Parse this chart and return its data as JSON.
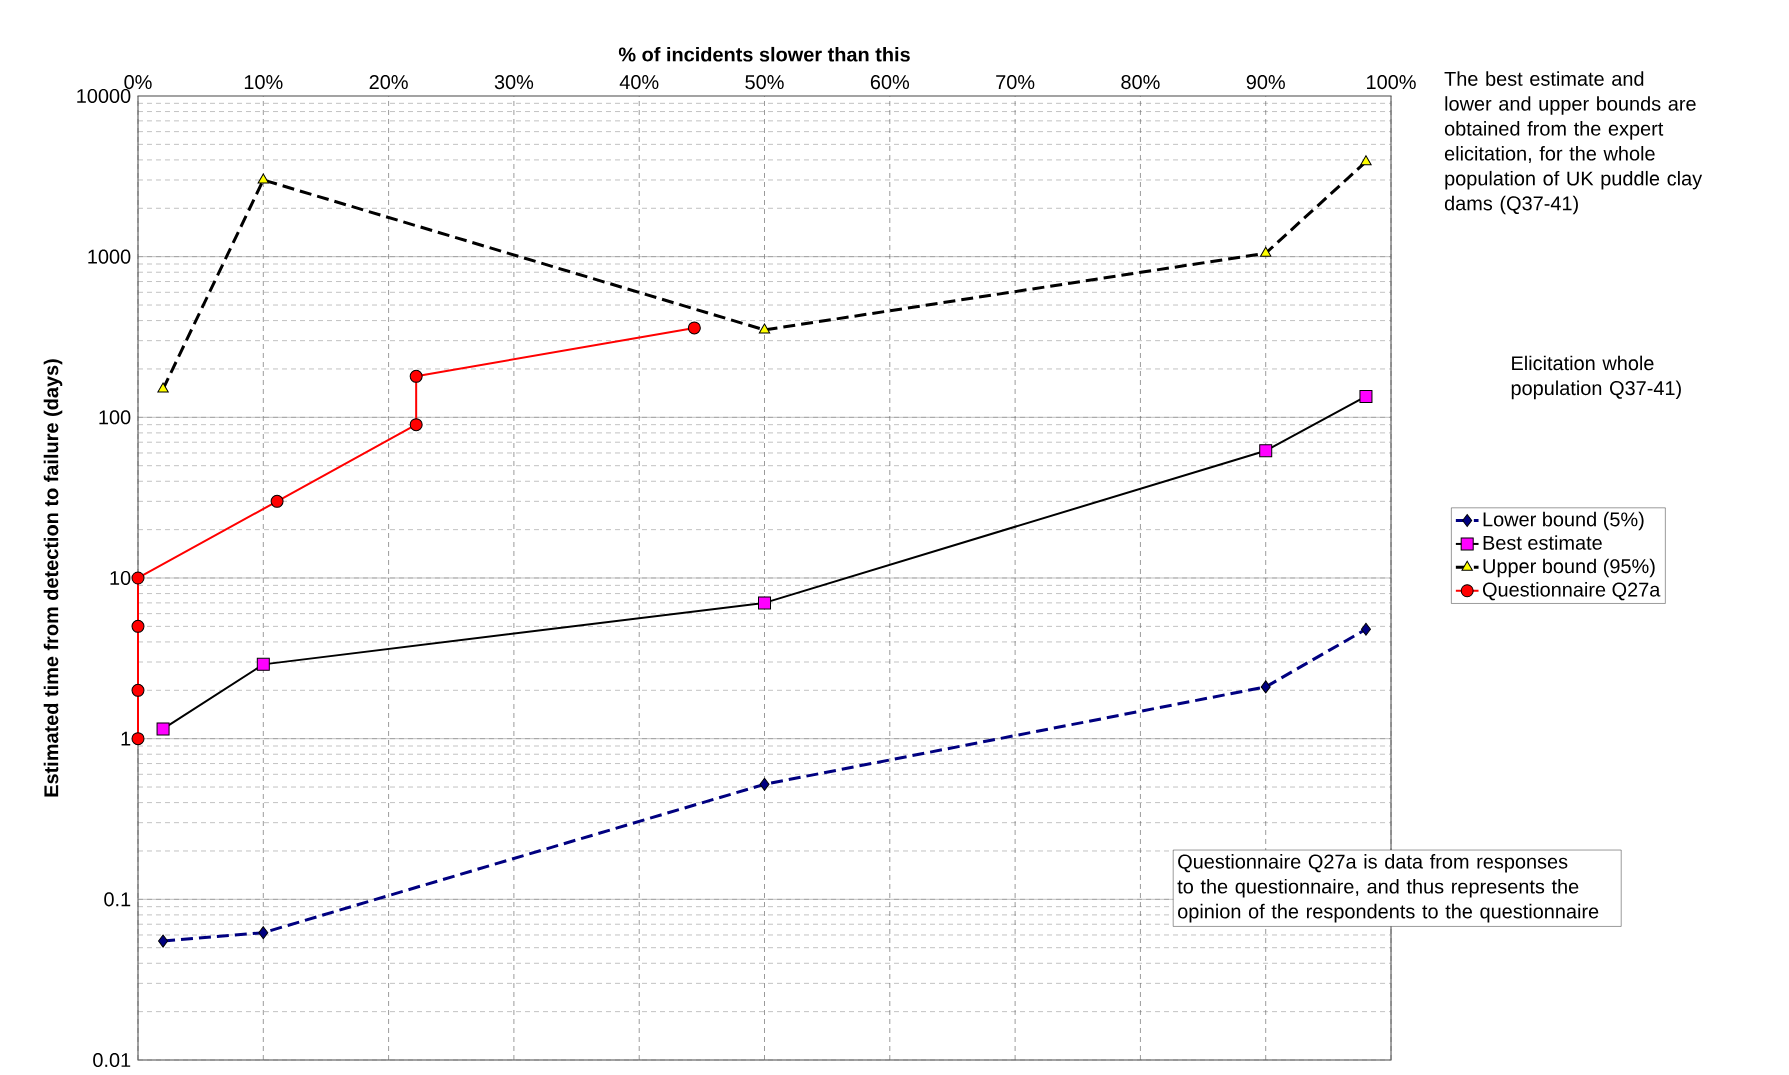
{
  "chart_data": {
    "type": "line",
    "xlabel": "% of incidents slower than this",
    "ylabel": "Estimated time from detection to failure (days)",
    "xlim": [
      0,
      100
    ],
    "xticks": [
      {
        "value": 0,
        "label": "0%"
      },
      {
        "value": 10,
        "label": "10%"
      },
      {
        "value": 20,
        "label": "20%"
      },
      {
        "value": 30,
        "label": "30%"
      },
      {
        "value": 40,
        "label": "40%"
      },
      {
        "value": 50,
        "label": "50%"
      },
      {
        "value": 60,
        "label": "60%"
      },
      {
        "value": 70,
        "label": "70%"
      },
      {
        "value": 80,
        "label": "80%"
      },
      {
        "value": 90,
        "label": "90%"
      },
      {
        "value": 100,
        "label": "100%"
      }
    ],
    "ylim": [
      0.01,
      10000
    ],
    "yticks": [
      0.01,
      0.1,
      1,
      10,
      100,
      1000,
      10000
    ],
    "log": "y",
    "grid": true,
    "legend": "right",
    "series": [
      {
        "name": "Lower bound (5%)",
        "color": "#000080",
        "colors": [
          "#000080",
          "#000080",
          "#000080",
          "#000080",
          "#000080"
        ],
        "marker": "diamond",
        "line_style": "dashed",
        "x": [
          2,
          10,
          50,
          90,
          98
        ],
        "values": [
          0.055,
          0.062,
          0.52,
          2.1,
          4.8
        ]
      },
      {
        "name": "Best estimate",
        "color": "#000000",
        "colors": [
          "#ff00ff",
          "#ff00ff",
          "#ff00ff",
          "#ff00ff",
          "#ff00ff"
        ],
        "marker": "square",
        "line_style": "solid",
        "x": [
          2,
          10,
          50,
          90,
          98
        ],
        "values": [
          1.15,
          2.9,
          7,
          62,
          135
        ]
      },
      {
        "name": "Upper bound (95%)",
        "color": "#000000",
        "colors": [
          "#ffff00",
          "#ffff00",
          "#ffff00",
          "#ffff00",
          "#ffff00"
        ],
        "marker": "triangle",
        "line_style": "dashed",
        "x": [
          2,
          10,
          50,
          90,
          98
        ],
        "values": [
          150,
          3000,
          350,
          1050,
          3900
        ]
      },
      {
        "name": "Questionnaire Q27a",
        "color": "#ff0000",
        "colors": [
          "#ff0000",
          "#ff0000",
          "#ff0000",
          "#ff0000",
          "#ff0000",
          "#ff0000",
          "#ff0000",
          "#ff0000"
        ],
        "marker": "circle",
        "line_style": "solid",
        "x": [
          0,
          0,
          0,
          0,
          11.1,
          22.2,
          22.2,
          44.4
        ],
        "values": [
          1,
          2,
          5,
          10,
          30,
          90,
          180,
          360
        ]
      }
    ],
    "annotations": [
      "The best estimate and lower and upper bounds are obtained from the expert elicitation, for the whole population of UK puddle clay dams  (Q37-41)",
      "Elicitation whole population Q37-41)",
      "Questionnaire Q27a is data from responses to the questionnaire, and thus represents the opinion of the respondents to the questionnaire"
    ]
  }
}
